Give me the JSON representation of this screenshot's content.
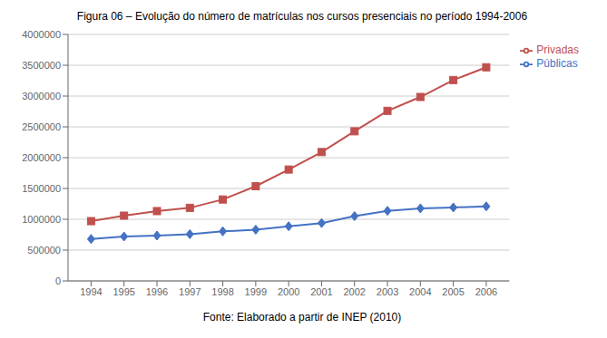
{
  "chart_data": {
    "type": "line",
    "title": "Figura 06  – Evolução do número de matrículas nos cursos presenciais no período 1994-2006",
    "annotations": [
      "Fonte: Elaborado a partir de INEP (2010)"
    ],
    "x": [
      1994,
      1995,
      1996,
      1997,
      1998,
      1999,
      2000,
      2001,
      2002,
      2003,
      2004,
      2005,
      2006
    ],
    "xlim": [
      1993.3,
      2006.7
    ],
    "xticks": [
      1994,
      1995,
      1996,
      1997,
      1998,
      1999,
      2000,
      2001,
      2002,
      2003,
      2004,
      2005,
      2006
    ],
    "series": [
      {
        "name": "Públicas",
        "color": "#4472C4",
        "marker": "diamond",
        "values": [
          680000,
          720000,
          735000,
          759000,
          804000,
          832000,
          887000,
          939000,
          1051000,
          1137000,
          1178000,
          1192000,
          1209000
        ]
      },
      {
        "name": "Privadas",
        "color": "#C0504D",
        "marker": "square",
        "values": [
          970000,
          1059000,
          1133000,
          1186000,
          1321000,
          1537000,
          1807000,
          2091000,
          2428000,
          2760000,
          2985000,
          3260000,
          3467000
        ]
      }
    ],
    "ylim": [
      0,
      4000000
    ],
    "yticks": [
      0,
      500000,
      1000000,
      1500000,
      2000000,
      2500000,
      3000000,
      3500000,
      4000000
    ],
    "grid": true,
    "legend": "right"
  }
}
